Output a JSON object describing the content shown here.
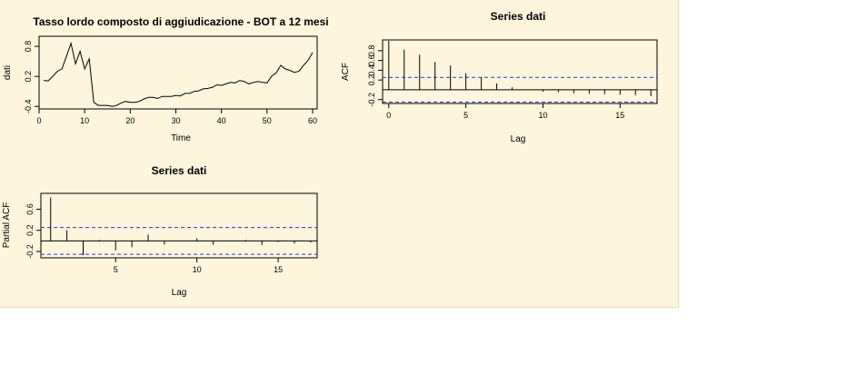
{
  "chart_data": [
    {
      "type": "line",
      "title": "Tasso lordo composto di aggiudicazione - BOT a 12 mesi",
      "xlabel": "Time",
      "ylabel": "dati",
      "xlim": [
        0,
        61
      ],
      "ylim": [
        -0.45,
        1.0
      ],
      "xticks": [
        0,
        10,
        20,
        30,
        40,
        50,
        60
      ],
      "yticks": [
        -0.4,
        0.2,
        0.8
      ],
      "ytick_labels": [
        "-0.4",
        "0.2",
        "0.8"
      ],
      "x": [
        1,
        2,
        3,
        4,
        5,
        6,
        7,
        8,
        9,
        10,
        11,
        12,
        13,
        14,
        15,
        16,
        17,
        18,
        19,
        20,
        21,
        22,
        23,
        24,
        25,
        26,
        27,
        28,
        29,
        30,
        31,
        32,
        33,
        34,
        35,
        36,
        37,
        38,
        39,
        40,
        41,
        42,
        43,
        44,
        45,
        46,
        47,
        48,
        49,
        50,
        51,
        52,
        53,
        54,
        55,
        56,
        57,
        58,
        59,
        60
      ],
      "values": [
        0.12,
        0.11,
        0.2,
        0.3,
        0.35,
        0.6,
        0.86,
        0.45,
        0.7,
        0.35,
        0.55,
        -0.32,
        -0.38,
        -0.38,
        -0.38,
        -0.4,
        -0.38,
        -0.33,
        -0.3,
        -0.32,
        -0.32,
        -0.3,
        -0.25,
        -0.22,
        -0.22,
        -0.24,
        -0.2,
        -0.2,
        -0.2,
        -0.18,
        -0.19,
        -0.14,
        -0.14,
        -0.1,
        -0.09,
        -0.05,
        -0.04,
        -0.02,
        0.03,
        0.02,
        0.05,
        0.08,
        0.07,
        0.12,
        0.1,
        0.05,
        0.08,
        0.1,
        0.08,
        0.07,
        0.2,
        0.27,
        0.42,
        0.35,
        0.32,
        0.28,
        0.3,
        0.42,
        0.52,
        0.68
      ]
    },
    {
      "type": "bar",
      "title": "Series  dati",
      "xlabel": "Lag",
      "ylabel": "ACF",
      "xlim": [
        -0.4,
        17.4
      ],
      "ylim": [
        -0.28,
        1.02
      ],
      "xticks": [
        0,
        5,
        10,
        15
      ],
      "yticks": [
        -0.2,
        0.2,
        0.4,
        0.6,
        0.8
      ],
      "ytick_labels": [
        "-0.2",
        "0.2",
        "0.4",
        "0.6",
        "0.8"
      ],
      "lags": [
        0,
        1,
        2,
        3,
        4,
        5,
        6,
        7,
        8,
        9,
        10,
        11,
        12,
        13,
        14,
        15,
        16,
        17
      ],
      "values": [
        1.0,
        0.82,
        0.72,
        0.57,
        0.5,
        0.34,
        0.25,
        0.13,
        0.05,
        0.0,
        -0.04,
        -0.05,
        -0.07,
        -0.08,
        -0.09,
        -0.1,
        -0.11,
        -0.13
      ],
      "ci": 0.253
    },
    {
      "type": "bar",
      "title": "Series  dati",
      "xlabel": "Lag",
      "ylabel": "Partial ACF",
      "xlim": [
        0.4,
        17.4
      ],
      "ylim": [
        -0.32,
        0.9
      ],
      "xticks": [
        5,
        10,
        15
      ],
      "yticks": [
        -0.2,
        0.2,
        0.6
      ],
      "ytick_labels": [
        "-0.2",
        "0.2",
        "0.6"
      ],
      "lags": [
        1,
        2,
        3,
        4,
        5,
        6,
        7,
        8,
        9,
        10,
        11,
        12,
        13,
        14,
        15,
        16,
        17
      ],
      "values": [
        0.82,
        0.2,
        -0.27,
        0.02,
        -0.18,
        -0.12,
        0.12,
        -0.07,
        0.0,
        0.05,
        -0.07,
        0.0,
        0.02,
        -0.08,
        -0.02,
        -0.05,
        -0.03
      ],
      "ci": 0.253
    }
  ],
  "colors": {
    "background": "#fdf6dc",
    "line": "#000000",
    "ci": "#3333cc"
  }
}
